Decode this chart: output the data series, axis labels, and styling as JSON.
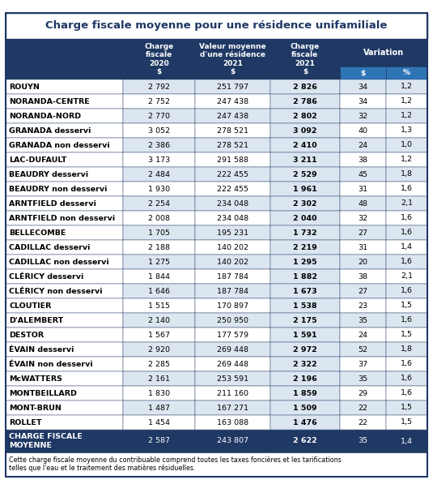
{
  "title": "Charge fiscale moyenne pour une résidence unifamiliale",
  "rows": [
    [
      "ROUYN",
      "2 792",
      "251 797",
      "2 826",
      "34",
      "1,2"
    ],
    [
      "NORANDA-CENTRE",
      "2 752",
      "247 438",
      "2 786",
      "34",
      "1,2"
    ],
    [
      "NORANDA-NORD",
      "2 770",
      "247 438",
      "2 802",
      "32",
      "1,2"
    ],
    [
      "GRANADA desservi",
      "3 052",
      "278 521",
      "3 092",
      "40",
      "1,3"
    ],
    [
      "GRANADA non desservi",
      "2 386",
      "278 521",
      "2 410",
      "24",
      "1,0"
    ],
    [
      "LAC-DUFAULT",
      "3 173",
      "291 588",
      "3 211",
      "38",
      "1,2"
    ],
    [
      "BEAUDRY desservi",
      "2 484",
      "222 455",
      "2 529",
      "45",
      "1,8"
    ],
    [
      "BEAUDRY non desservi",
      "1 930",
      "222 455",
      "1 961",
      "31",
      "1,6"
    ],
    [
      "ARNTFIELD desservi",
      "2 254",
      "234 048",
      "2 302",
      "48",
      "2,1"
    ],
    [
      "ARNTFIELD non desservi",
      "2 008",
      "234 048",
      "2 040",
      "32",
      "1,6"
    ],
    [
      "BELLECOMBE",
      "1 705",
      "195 231",
      "1 732",
      "27",
      "1,6"
    ],
    [
      "CADILLAC desservi",
      "2 188",
      "140 202",
      "2 219",
      "31",
      "1,4"
    ],
    [
      "CADILLAC non desservi",
      "1 275",
      "140 202",
      "1 295",
      "20",
      "1,6"
    ],
    [
      "CLÉRICY desservi",
      "1 844",
      "187 784",
      "1 882",
      "38",
      "2,1"
    ],
    [
      "CLÉRICY non desservi",
      "1 646",
      "187 784",
      "1 673",
      "27",
      "1,6"
    ],
    [
      "CLOUTIER",
      "1 515",
      "170 897",
      "1 538",
      "23",
      "1,5"
    ],
    [
      "D'ALEMBERT",
      "2 140",
      "250 950",
      "2 175",
      "35",
      "1,6"
    ],
    [
      "DESTOR",
      "1 567",
      "177 579",
      "1 591",
      "24",
      "1,5"
    ],
    [
      "ÉVAIN desservi",
      "2 920",
      "269 448",
      "2 972",
      "52",
      "1,8"
    ],
    [
      "ÉVAIN non desservi",
      "2 285",
      "269 448",
      "2 322",
      "37",
      "1,6"
    ],
    [
      "McWATTERS",
      "2 161",
      "253 591",
      "2 196",
      "35",
      "1,6"
    ],
    [
      "MONTBEILLARD",
      "1 830",
      "211 160",
      "1 859",
      "29",
      "1,6"
    ],
    [
      "MONT-BRUN",
      "1 487",
      "167 271",
      "1 509",
      "22",
      "1,5"
    ],
    [
      "ROLLET",
      "1 454",
      "163 088",
      "1 476",
      "22",
      "1,5"
    ]
  ],
  "footer_row": [
    "CHARGE FISCALE\nMOYENNE",
    "2 587",
    "243 807",
    "2 622",
    "35",
    "1,4"
  ],
  "footnote": "Cette charge fiscale moyenne du contribuable comprend toutes les taxes foncières et les tarifications\ntelles que l'eau et le traitement des matières résiduelles.",
  "header_bg": "#1f3864",
  "header_text": "#ffffff",
  "subheader_bg": "#2e75b6",
  "title_color": "#1f3864",
  "alt_row_bg": "#dce6f1",
  "normal_row_bg": "#ffffff",
  "footer_bg": "#1f3864",
  "footer_text": "#ffffff",
  "border_color": "#1f3864",
  "outer_border": "#1f3864"
}
